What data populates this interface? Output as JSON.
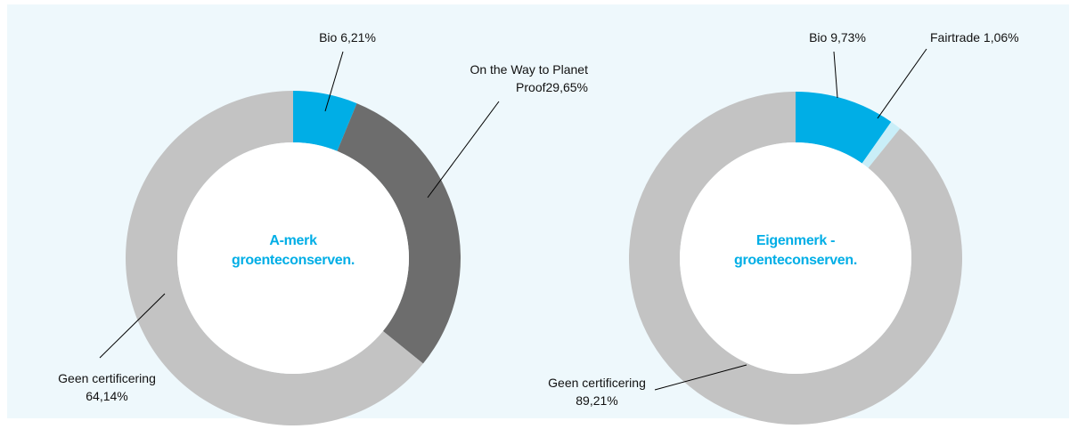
{
  "chart_data": [
    {
      "type": "donut",
      "title": "A-merk groenteconserven.",
      "categories": [
        "Bio",
        "On the Way to Planet Proof",
        "Geen certificering"
      ],
      "values": [
        6.21,
        29.65,
        64.14
      ],
      "value_labels": [
        "6,21%",
        "29,65%",
        "64,14%"
      ],
      "colors": [
        "#00aee6",
        "#6d6d6d",
        "#c3c3c3"
      ]
    },
    {
      "type": "donut",
      "title": "Eigenmerk - groenteconserven.",
      "categories": [
        "Bio",
        "Fairtrade",
        "Geen certificering"
      ],
      "values": [
        9.73,
        1.06,
        89.21
      ],
      "value_labels": [
        "9,73%",
        "1,06%",
        "89,21%"
      ],
      "colors": [
        "#00aee6",
        "#c9eef8",
        "#c3c3c3"
      ]
    }
  ]
}
